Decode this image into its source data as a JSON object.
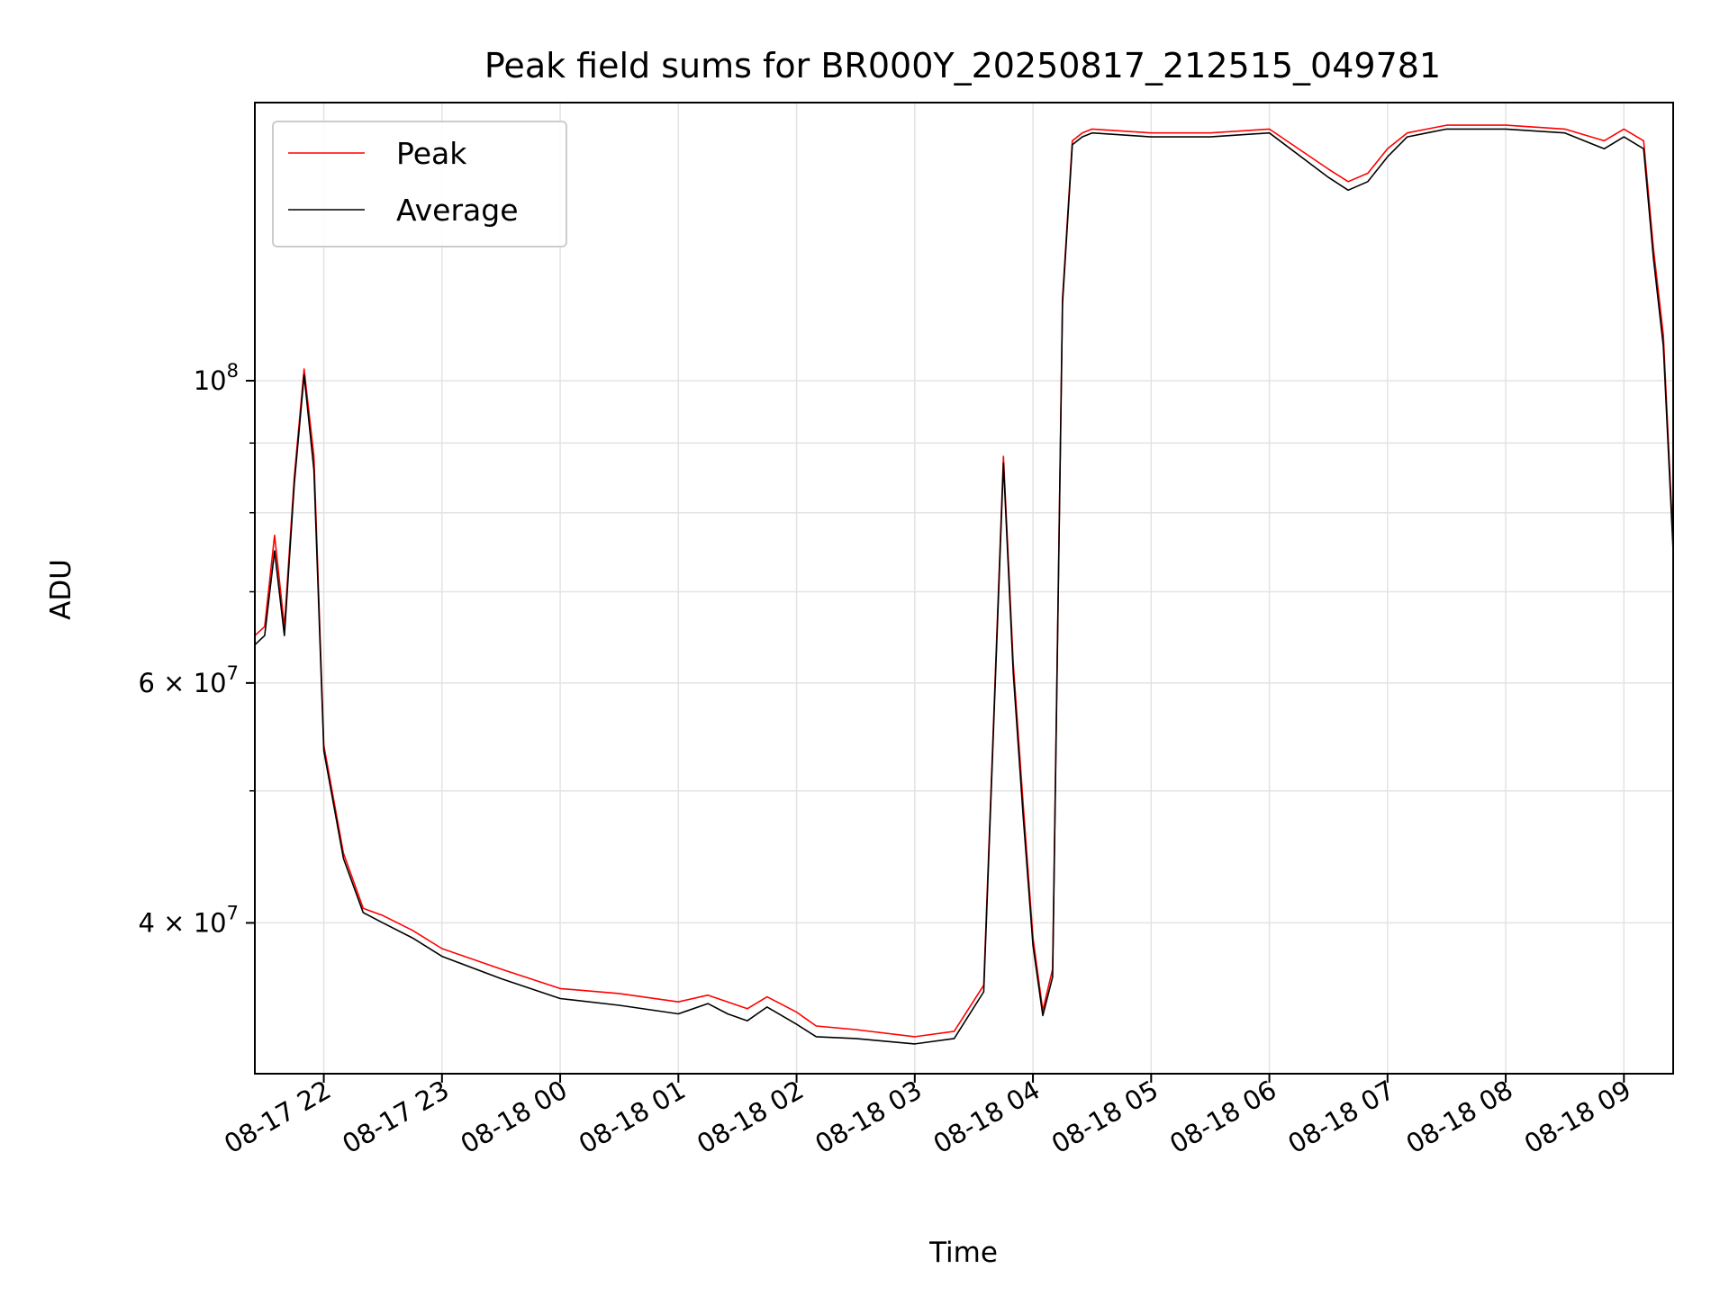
{
  "chart_data": {
    "type": "line",
    "title": "Peak field sums for BR000Y_20250817_212515_049781",
    "xlabel": "Time",
    "ylabel": "ADU",
    "y_scale": "log",
    "ylim": [
      31000000,
      160000000
    ],
    "xlim": [
      "2025-08-17 21:25",
      "2025-08-18 09:25"
    ],
    "grid": true,
    "legend_position": "top-left",
    "x_tick_labels": [
      "08-17 22",
      "08-17 23",
      "08-18 00",
      "08-18 01",
      "08-18 02",
      "08-18 03",
      "08-18 04",
      "08-18 05",
      "08-18 06",
      "08-18 07",
      "08-18 08",
      "08-18 09"
    ],
    "y_ticks": [
      {
        "value": 40000000,
        "mantissa": "4",
        "exponent": "7"
      },
      {
        "value": 60000000,
        "mantissa": "6",
        "exponent": "7"
      },
      {
        "value": 100000000,
        "mantissa": "",
        "exponent": "8"
      }
    ],
    "y_minor_ticks": [
      50000000,
      70000000,
      80000000,
      90000000
    ],
    "x": [
      "2025-08-17 21:25",
      "2025-08-17 21:30",
      "2025-08-17 21:35",
      "2025-08-17 21:40",
      "2025-08-17 21:45",
      "2025-08-17 21:50",
      "2025-08-17 21:55",
      "2025-08-17 22:00",
      "2025-08-17 22:10",
      "2025-08-17 22:20",
      "2025-08-17 22:30",
      "2025-08-17 22:45",
      "2025-08-17 23:00",
      "2025-08-17 23:30",
      "2025-08-18 00:00",
      "2025-08-18 00:30",
      "2025-08-18 01:00",
      "2025-08-18 01:15",
      "2025-08-18 01:25",
      "2025-08-18 01:35",
      "2025-08-18 01:45",
      "2025-08-18 02:00",
      "2025-08-18 02:10",
      "2025-08-18 02:30",
      "2025-08-18 03:00",
      "2025-08-18 03:20",
      "2025-08-18 03:35",
      "2025-08-18 03:45",
      "2025-08-18 03:50",
      "2025-08-18 03:55",
      "2025-08-18 04:00",
      "2025-08-18 04:05",
      "2025-08-18 04:10",
      "2025-08-18 04:15",
      "2025-08-18 04:20",
      "2025-08-18 04:25",
      "2025-08-18 04:30",
      "2025-08-18 05:00",
      "2025-08-18 05:30",
      "2025-08-18 06:00",
      "2025-08-18 06:30",
      "2025-08-18 06:40",
      "2025-08-18 06:50",
      "2025-08-18 07:00",
      "2025-08-18 07:10",
      "2025-08-18 07:20",
      "2025-08-18 07:30",
      "2025-08-18 08:00",
      "2025-08-18 08:30",
      "2025-08-18 08:50",
      "2025-08-18 09:00",
      "2025-08-18 09:10",
      "2025-08-18 09:15",
      "2025-08-18 09:20",
      "2025-08-18 09:25"
    ],
    "series": [
      {
        "name": "Peak",
        "color": "#ff0000",
        "values": [
          65000000,
          66000000,
          77000000,
          66000000,
          85000000,
          102000000,
          88000000,
          54000000,
          45000000,
          41000000,
          40500000,
          39500000,
          38300000,
          37000000,
          35800000,
          35500000,
          35000000,
          35400000,
          35000000,
          34600000,
          35300000,
          34400000,
          33600000,
          33400000,
          33000000,
          33300000,
          36000000,
          88000000,
          62000000,
          49000000,
          39000000,
          34500000,
          37000000,
          115000000,
          150000000,
          152000000,
          153000000,
          152000000,
          152000000,
          153000000,
          143000000,
          140000000,
          142000000,
          148000000,
          152000000,
          153000000,
          154000000,
          154000000,
          153000000,
          150000000,
          153000000,
          150000000,
          125000000,
          108000000,
          76000000
        ]
      },
      {
        "name": "Average",
        "color": "#000000",
        "values": [
          64000000,
          65000000,
          75000000,
          65000000,
          84000000,
          101000000,
          86000000,
          53500000,
          44600000,
          40700000,
          40000000,
          39000000,
          37800000,
          36400000,
          35200000,
          34800000,
          34300000,
          34900000,
          34300000,
          33900000,
          34700000,
          33700000,
          33000000,
          32900000,
          32600000,
          32900000,
          35600000,
          87000000,
          61000000,
          48000000,
          38500000,
          34200000,
          36500000,
          114000000,
          149000000,
          151000000,
          152000000,
          151000000,
          151000000,
          152000000,
          141000000,
          138000000,
          140000000,
          146000000,
          151000000,
          152000000,
          153000000,
          153000000,
          152000000,
          148000000,
          151000000,
          148000000,
          123000000,
          106000000,
          75000000
        ]
      }
    ]
  }
}
